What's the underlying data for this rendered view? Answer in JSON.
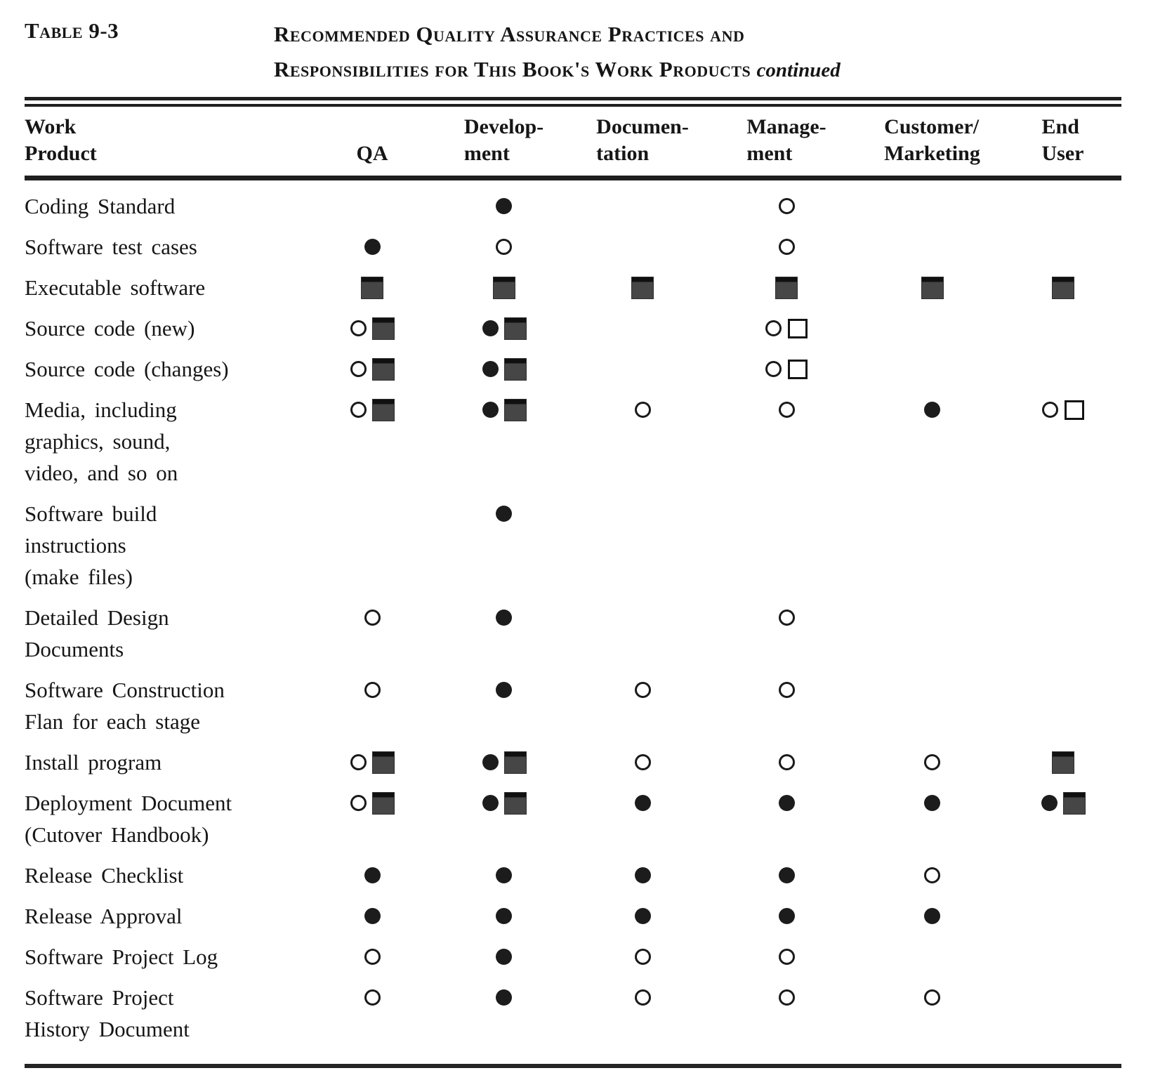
{
  "page": {
    "table_label": "Table 9-3",
    "title_line1": "Recommended Quality Assurance Practices and",
    "title_line2": "Responsibilities for This Book's Work Products",
    "title_continued": "continued",
    "colors": {
      "paper": "#ffffff",
      "ink": "#161616",
      "square_fill": "#464646"
    }
  },
  "table": {
    "columns": [
      {
        "id": "work-product",
        "lines": [
          "Work",
          "Product"
        ]
      },
      {
        "id": "qa",
        "lines": [
          "",
          "QA"
        ]
      },
      {
        "id": "development",
        "lines": [
          "Develop-",
          "ment"
        ]
      },
      {
        "id": "documentation",
        "lines": [
          "Documen-",
          "tation"
        ]
      },
      {
        "id": "management",
        "lines": [
          "Manage-",
          "ment"
        ]
      },
      {
        "id": "customer-marketing",
        "lines": [
          "Customer/",
          "Marketing"
        ]
      },
      {
        "id": "end-user",
        "lines": [
          "End",
          "User"
        ]
      }
    ],
    "symbols": {
      "filled-circle": "●",
      "open-circle": "○",
      "filled-square": "■",
      "open-square": "□"
    },
    "rows": [
      {
        "label_lines": [
          "Coding Standard"
        ],
        "cells": [
          [],
          [
            "filled-circle"
          ],
          [],
          [
            "open-circle"
          ],
          [],
          []
        ]
      },
      {
        "label_lines": [
          "Software test cases"
        ],
        "cells": [
          [
            "filled-circle"
          ],
          [
            "open-circle"
          ],
          [],
          [
            "open-circle"
          ],
          [],
          []
        ]
      },
      {
        "label_lines": [
          "Executable software"
        ],
        "cells": [
          [
            "filled-square"
          ],
          [
            "filled-square"
          ],
          [
            "filled-square"
          ],
          [
            "filled-square"
          ],
          [
            "filled-square"
          ],
          [
            "filled-square"
          ]
        ]
      },
      {
        "label_lines": [
          "Source code (new)"
        ],
        "cells": [
          [
            "open-circle",
            "filled-square"
          ],
          [
            "filled-circle",
            "filled-square"
          ],
          [],
          [
            "open-circle",
            "open-square"
          ],
          [],
          []
        ]
      },
      {
        "label_lines": [
          "Source code (changes)"
        ],
        "cells": [
          [
            "open-circle",
            "filled-square"
          ],
          [
            "filled-circle",
            "filled-square"
          ],
          [],
          [
            "open-circle",
            "open-square"
          ],
          [],
          []
        ]
      },
      {
        "label_lines": [
          "Media, including",
          "graphics, sound,",
          "video, and so on"
        ],
        "cells": [
          [
            "open-circle",
            "filled-square"
          ],
          [
            "filled-circle",
            "filled-square"
          ],
          [
            "open-circle"
          ],
          [
            "open-circle"
          ],
          [
            "filled-circle"
          ],
          [
            "open-circle",
            "open-square"
          ]
        ]
      },
      {
        "label_lines": [
          "Software build",
          "instructions",
          "(make files)"
        ],
        "cells": [
          [],
          [
            "filled-circle"
          ],
          [],
          [],
          [],
          []
        ]
      },
      {
        "label_lines": [
          "Detailed Design",
          "Documents"
        ],
        "cells": [
          [
            "open-circle"
          ],
          [
            "filled-circle"
          ],
          [],
          [
            "open-circle"
          ],
          [],
          []
        ]
      },
      {
        "label_lines": [
          "Software Construction",
          "Flan for each stage"
        ],
        "cells": [
          [
            "open-circle"
          ],
          [
            "filled-circle"
          ],
          [
            "open-circle"
          ],
          [
            "open-circle"
          ],
          [],
          []
        ]
      },
      {
        "label_lines": [
          "Install program"
        ],
        "cells": [
          [
            "open-circle",
            "filled-square"
          ],
          [
            "filled-circle",
            "filled-square"
          ],
          [
            "open-circle"
          ],
          [
            "open-circle"
          ],
          [
            "open-circle"
          ],
          [
            "filled-square"
          ]
        ]
      },
      {
        "label_lines": [
          "Deployment Document",
          "(Cutover Handbook)"
        ],
        "cells": [
          [
            "open-circle",
            "filled-square"
          ],
          [
            "filled-circle",
            "filled-square"
          ],
          [
            "filled-circle"
          ],
          [
            "filled-circle"
          ],
          [
            "filled-circle"
          ],
          [
            "filled-circle",
            "filled-square"
          ]
        ]
      },
      {
        "label_lines": [
          "Release Checklist"
        ],
        "cells": [
          [
            "filled-circle"
          ],
          [
            "filled-circle"
          ],
          [
            "filled-circle"
          ],
          [
            "filled-circle"
          ],
          [
            "open-circle"
          ],
          []
        ]
      },
      {
        "label_lines": [
          "Release Approval"
        ],
        "cells": [
          [
            "filled-circle"
          ],
          [
            "filled-circle"
          ],
          [
            "filled-circle"
          ],
          [
            "filled-circle"
          ],
          [
            "filled-circle"
          ],
          []
        ]
      },
      {
        "label_lines": [
          "Software Project Log"
        ],
        "cells": [
          [
            "open-circle"
          ],
          [
            "filled-circle"
          ],
          [
            "open-circle"
          ],
          [
            "open-circle"
          ],
          [],
          []
        ]
      },
      {
        "label_lines": [
          "Software Project",
          "History Document"
        ],
        "cells": [
          [
            "open-circle"
          ],
          [
            "filled-circle"
          ],
          [
            "open-circle"
          ],
          [
            "open-circle"
          ],
          [
            "open-circle"
          ],
          []
        ]
      }
    ]
  }
}
